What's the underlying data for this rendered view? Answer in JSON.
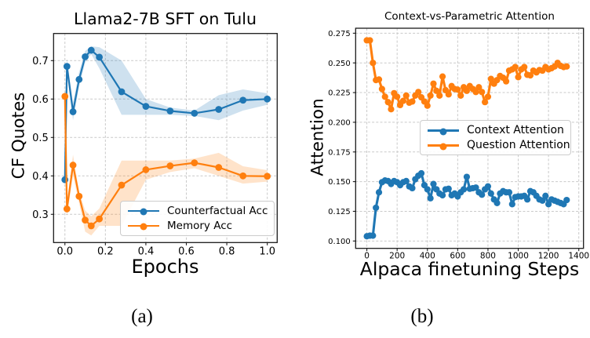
{
  "page": {
    "background": "#ffffff"
  },
  "colors": {
    "blue": "#1f77b4",
    "orange": "#ff7f0e",
    "grid": "#c9c9c9",
    "spine": "#1a1a1a",
    "band_opacity": 0.22
  },
  "captions": {
    "a": "(a)",
    "b": "(b)"
  },
  "chart_data": [
    {
      "id": "sft",
      "type": "line",
      "title": "Llama2-7B SFT on Tulu",
      "xlabel": "Epochs",
      "ylabel": "CF Quotes",
      "xlim": [
        -0.056,
        1.049
      ],
      "ylim": [
        0.2265,
        0.7706
      ],
      "xticks": [
        0.0,
        0.2,
        0.4,
        0.6,
        0.8,
        1.0
      ],
      "xtick_labels": [
        "0.0",
        "0.2",
        "0.4",
        "0.6",
        "0.8",
        "1.0"
      ],
      "yticks": [
        0.3,
        0.4,
        0.5,
        0.6,
        0.7
      ],
      "ytick_labels": [
        "0.3",
        "0.4",
        "0.5",
        "0.6",
        "0.7"
      ],
      "grid": true,
      "legend_position": "lower right",
      "x": [
        0.0,
        0.01,
        0.04,
        0.07,
        0.1,
        0.13,
        0.17,
        0.28,
        0.4,
        0.52,
        0.64,
        0.76,
        0.88,
        1.0
      ],
      "series": [
        {
          "name": "Counterfactual Acc",
          "color": "#1f77b4",
          "values": [
            0.39,
            0.685,
            0.567,
            0.651,
            0.71,
            0.727,
            0.709,
            0.619,
            0.581,
            0.569,
            0.563,
            0.573,
            0.597,
            0.6
          ],
          "band_upper": [
            0.39,
            0.705,
            0.59,
            0.67,
            0.725,
            0.737,
            0.735,
            0.7,
            0.6,
            0.578,
            0.57,
            0.61,
            0.625,
            0.615
          ],
          "band_lower": [
            0.39,
            0.665,
            0.545,
            0.632,
            0.695,
            0.717,
            0.68,
            0.559,
            0.559,
            0.559,
            0.556,
            0.545,
            0.57,
            0.585
          ]
        },
        {
          "name": "Memory Acc",
          "color": "#ff7f0e",
          "values": [
            0.607,
            0.314,
            0.428,
            0.347,
            0.285,
            0.27,
            0.288,
            0.376,
            0.416,
            0.426,
            0.434,
            0.422,
            0.4,
            0.399
          ],
          "band_upper": [
            0.607,
            0.335,
            0.455,
            0.36,
            0.31,
            0.295,
            0.315,
            0.44,
            0.44,
            0.44,
            0.445,
            0.46,
            0.425,
            0.415
          ],
          "band_lower": [
            0.607,
            0.295,
            0.4,
            0.33,
            0.255,
            0.245,
            0.27,
            0.27,
            0.39,
            0.41,
            0.42,
            0.4,
            0.38,
            0.385
          ]
        }
      ]
    },
    {
      "id": "attention",
      "type": "line",
      "title": "Context-vs-Parametric Attention",
      "xlabel": "Alpaca finetuning Steps",
      "ylabel": "Attention",
      "xlim": [
        -74,
        1431
      ],
      "ylim": [
        0.0938,
        0.2792
      ],
      "xticks": [
        0,
        200,
        400,
        600,
        800,
        1000,
        1200,
        1400
      ],
      "xtick_labels": [
        "0",
        "200",
        "400",
        "600",
        "800",
        "1000",
        "1200",
        "1400"
      ],
      "yticks": [
        0.1,
        0.125,
        0.15,
        0.175,
        0.2,
        0.225,
        0.25,
        0.275
      ],
      "ytick_labels": [
        "0.100",
        "0.125",
        "0.150",
        "0.175",
        "0.200",
        "0.225",
        "0.250",
        "0.275"
      ],
      "grid": true,
      "legend_position": "center right",
      "x_range": {
        "start": 0,
        "step": 20,
        "count": 67
      },
      "series": [
        {
          "name": "Context Attention",
          "color": "#1f77b4",
          "values": [
            0.104,
            0.1045,
            0.1045,
            0.128,
            0.141,
            0.1495,
            0.151,
            0.1505,
            0.148,
            0.1505,
            0.1495,
            0.147,
            0.1495,
            0.1505,
            0.146,
            0.1445,
            0.152,
            0.155,
            0.157,
            0.147,
            0.1435,
            0.136,
            0.148,
            0.1435,
            0.14,
            0.1385,
            0.1435,
            0.144,
            0.1385,
            0.14,
            0.1375,
            0.141,
            0.1435,
            0.154,
            0.144,
            0.1445,
            0.145,
            0.141,
            0.139,
            0.1435,
            0.146,
            0.14,
            0.135,
            0.132,
            0.14,
            0.142,
            0.141,
            0.141,
            0.131,
            0.137,
            0.1375,
            0.1375,
            0.138,
            0.135,
            0.142,
            0.141,
            0.138,
            0.135,
            0.134,
            0.138,
            0.131,
            0.135,
            0.134,
            0.133,
            0.132,
            0.131,
            0.1345
          ]
        },
        {
          "name": "Question Attention",
          "color": "#ff7f0e",
          "values": [
            0.269,
            0.269,
            0.25,
            0.2355,
            0.236,
            0.228,
            0.2215,
            0.217,
            0.211,
            0.2245,
            0.2215,
            0.2145,
            0.218,
            0.2225,
            0.2165,
            0.2175,
            0.2225,
            0.2255,
            0.221,
            0.2175,
            0.214,
            0.2225,
            0.2325,
            0.2265,
            0.2225,
            0.2385,
            0.227,
            0.2235,
            0.2305,
            0.228,
            0.2275,
            0.2225,
            0.2295,
            0.2265,
            0.2305,
            0.228,
            0.2255,
            0.2295,
            0.2255,
            0.217,
            0.2215,
            0.2365,
            0.2325,
            0.2355,
            0.239,
            0.2375,
            0.2345,
            0.2435,
            0.2445,
            0.2465,
            0.238,
            0.2445,
            0.2465,
            0.24,
            0.2395,
            0.2435,
            0.242,
            0.244,
            0.2435,
            0.2465,
            0.2445,
            0.2455,
            0.247,
            0.25,
            0.2475,
            0.2465,
            0.247
          ]
        }
      ]
    }
  ]
}
